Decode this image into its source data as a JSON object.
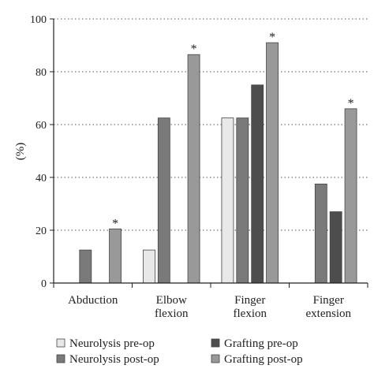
{
  "chart_data": {
    "type": "bar",
    "ylabel": "(%)",
    "ylim": [
      0,
      100
    ],
    "yticks": [
      0,
      20,
      40,
      60,
      80,
      100
    ],
    "grid": "horizontal dotted",
    "legend_position": "bottom",
    "categories": [
      [
        "Abduction"
      ],
      [
        "Elbow",
        "flexion"
      ],
      [
        "Finger",
        "flexion"
      ],
      [
        "Finger",
        "extension"
      ]
    ],
    "series": [
      {
        "name": "Neurolysis pre-op",
        "color": "#e8e8e8",
        "values": [
          0,
          12.5,
          62.5,
          0
        ]
      },
      {
        "name": "Neurolysis post-op",
        "color": "#7a7a7a",
        "values": [
          12.5,
          62.5,
          62.5,
          37.5
        ]
      },
      {
        "name": "Grafting pre-op",
        "color": "#4d4d4d",
        "values": [
          0,
          0,
          75,
          27
        ]
      },
      {
        "name": "Grafting post-op",
        "color": "#999999",
        "values": [
          20.5,
          86.5,
          91,
          66
        ]
      }
    ],
    "annotations": [
      {
        "text": "*",
        "series": 3,
        "category": 0
      },
      {
        "text": "*",
        "series": 3,
        "category": 1
      },
      {
        "text": "*",
        "series": 3,
        "category": 2
      },
      {
        "text": "*",
        "series": 3,
        "category": 3
      }
    ],
    "legend_order": [
      0,
      2,
      1,
      3
    ]
  }
}
